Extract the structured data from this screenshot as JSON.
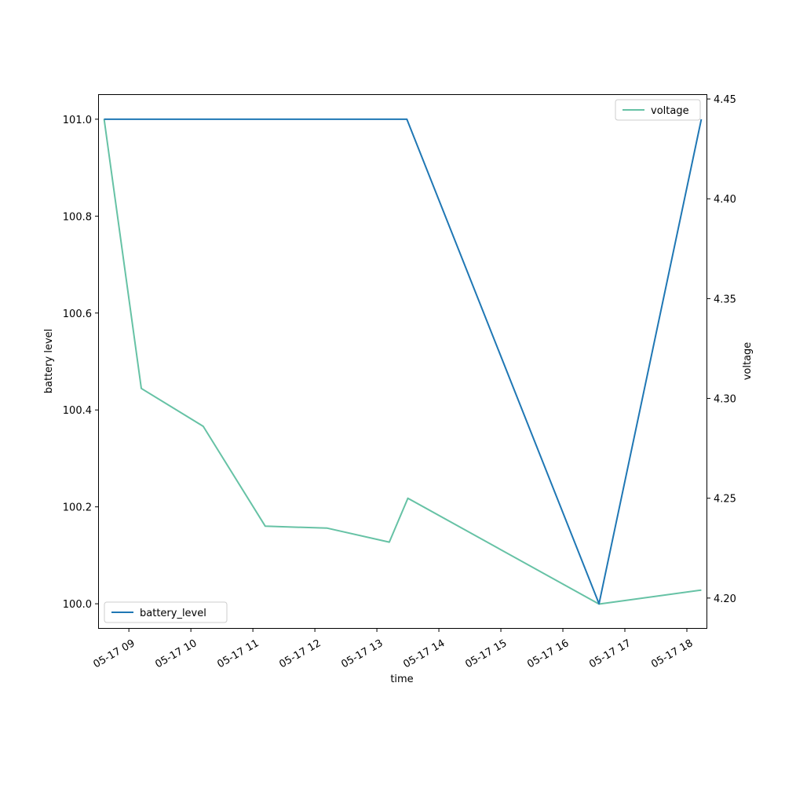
{
  "chart_data": {
    "type": "line",
    "xlabel": "time",
    "ylabel": "battery level",
    "ylabel_right": "voltage",
    "x_range": [
      "2024-05-17 08:31",
      "2024-05-17 18:19"
    ],
    "ylim": [
      99.95,
      101.05
    ],
    "ylim_right": [
      4.185,
      4.452
    ],
    "x_ticks": [
      {
        "t": "2024-05-17 09:00",
        "label": "05-17 09"
      },
      {
        "t": "2024-05-17 10:00",
        "label": "05-17 10"
      },
      {
        "t": "2024-05-17 11:00",
        "label": "05-17 11"
      },
      {
        "t": "2024-05-17 12:00",
        "label": "05-17 12"
      },
      {
        "t": "2024-05-17 13:00",
        "label": "05-17 13"
      },
      {
        "t": "2024-05-17 14:00",
        "label": "05-17 14"
      },
      {
        "t": "2024-05-17 15:00",
        "label": "05-17 15"
      },
      {
        "t": "2024-05-17 16:00",
        "label": "05-17 16"
      },
      {
        "t": "2024-05-17 17:00",
        "label": "05-17 17"
      },
      {
        "t": "2024-05-17 18:00",
        "label": "05-17 18"
      }
    ],
    "y_ticks": [
      {
        "v": 100.0,
        "label": "100.0"
      },
      {
        "v": 100.2,
        "label": "100.2"
      },
      {
        "v": 100.4,
        "label": "100.4"
      },
      {
        "v": 100.6,
        "label": "100.6"
      },
      {
        "v": 100.8,
        "label": "100.8"
      },
      {
        "v": 101.0,
        "label": "101.0"
      }
    ],
    "y_ticks_right": [
      {
        "v": 4.2,
        "label": "4.20"
      },
      {
        "v": 4.25,
        "label": "4.25"
      },
      {
        "v": 4.3,
        "label": "4.30"
      },
      {
        "v": 4.35,
        "label": "4.35"
      },
      {
        "v": 4.4,
        "label": "4.40"
      },
      {
        "v": 4.45,
        "label": "4.45"
      }
    ],
    "series": [
      {
        "name": "battery_level",
        "axis": "left",
        "color": "#1f77b4",
        "legend_position": "lower-left",
        "points": [
          {
            "t": "2024-05-17 08:36",
            "y": 101.0
          },
          {
            "t": "2024-05-17 13:29",
            "y": 101.0
          },
          {
            "t": "2024-05-17 16:35",
            "y": 100.0
          },
          {
            "t": "2024-05-17 18:14",
            "y": 101.0
          }
        ]
      },
      {
        "name": "voltage",
        "axis": "right",
        "color": "#66c2a5",
        "legend_position": "upper-right",
        "points": [
          {
            "t": "2024-05-17 08:36",
            "y": 4.44
          },
          {
            "t": "2024-05-17 09:12",
            "y": 4.305
          },
          {
            "t": "2024-05-17 10:12",
            "y": 4.286
          },
          {
            "t": "2024-05-17 11:12",
            "y": 4.236
          },
          {
            "t": "2024-05-17 12:12",
            "y": 4.235
          },
          {
            "t": "2024-05-17 13:12",
            "y": 4.228
          },
          {
            "t": "2024-05-17 13:30",
            "y": 4.25
          },
          {
            "t": "2024-05-17 16:35",
            "y": 4.197
          },
          {
            "t": "2024-05-17 18:14",
            "y": 4.204
          }
        ]
      }
    ]
  }
}
